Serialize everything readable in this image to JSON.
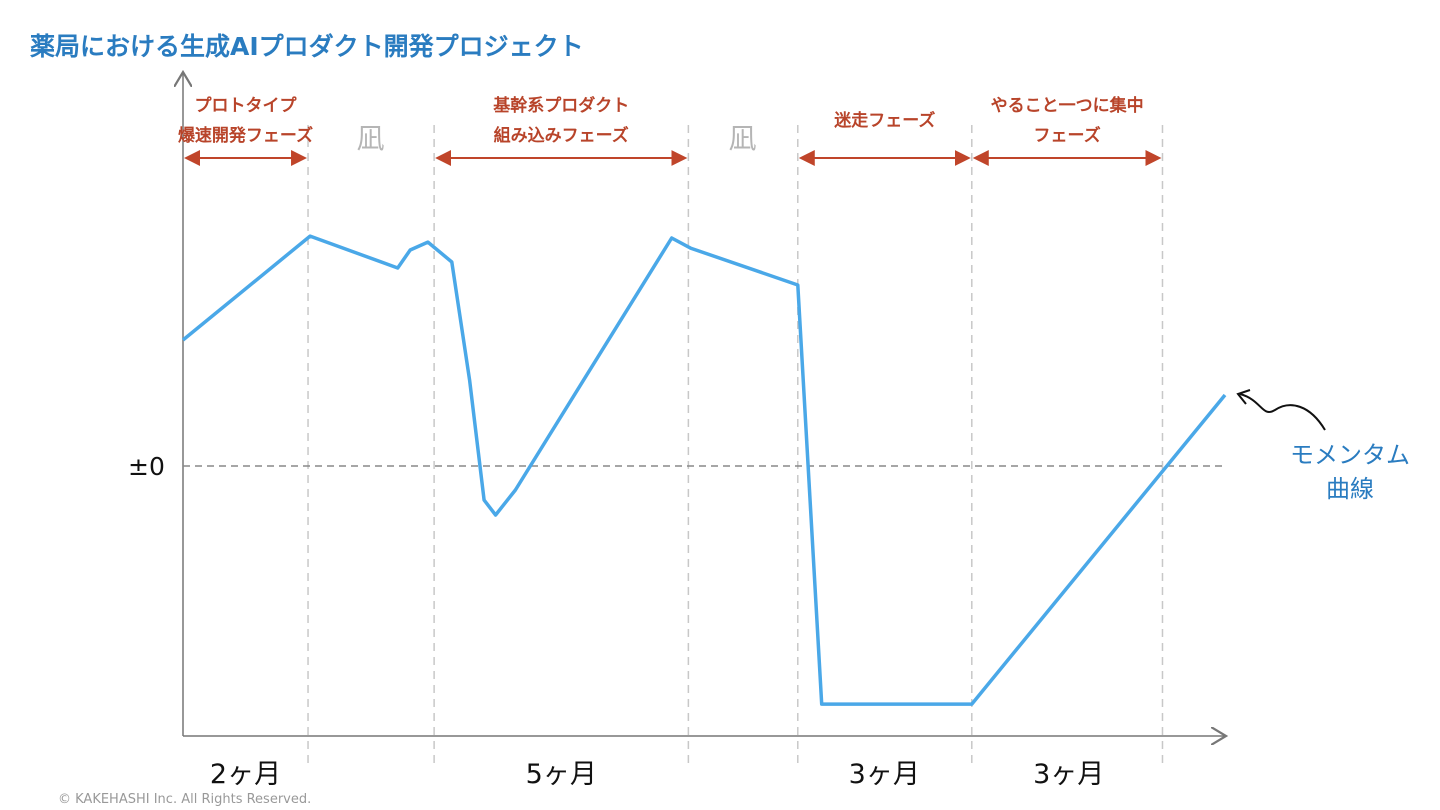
{
  "chart_data": {
    "type": "line",
    "title": "薬局における生成AIプロダクト開発プロジェクト",
    "xlabel": "",
    "ylabel": "",
    "xlim": [
      0,
      100
    ],
    "ylim": [
      -110,
      120
    ],
    "zero_label": "±0",
    "series": [
      {
        "name": "モメンタム曲線",
        "color": "#4aa8e8",
        "points": [
          [
            0,
            52.5
          ],
          [
            12.2,
            95.8
          ],
          [
            20.6,
            82.5
          ],
          [
            21.8,
            90
          ],
          [
            23.5,
            93.3
          ],
          [
            25.8,
            85
          ],
          [
            27.5,
            35.8
          ],
          [
            28.9,
            -14.2
          ],
          [
            30,
            -20.4
          ],
          [
            31.9,
            -10
          ],
          [
            46.9,
            95
          ],
          [
            48.7,
            90.8
          ],
          [
            59,
            75.4
          ],
          [
            61.3,
            -99.2
          ],
          [
            75.7,
            -99.2
          ],
          [
            100,
            29.6
          ]
        ]
      }
    ],
    "dividers": [
      12,
      24.1,
      48.5,
      59,
      75.7,
      94
    ],
    "phases": [
      {
        "lines": [
          "プロトタイプ",
          "爆速開発フェーズ"
        ],
        "from": 0,
        "to": 12
      },
      {
        "lines": [
          "基幹系プロダクト",
          "組み込みフェーズ"
        ],
        "from": 24.1,
        "to": 48.5
      },
      {
        "lines": [
          "迷走フェーズ"
        ],
        "from": 59,
        "to": 75.7
      },
      {
        "lines": [
          "やること一つに集中",
          "フェーズ"
        ],
        "from": 75.7,
        "to": 94
      }
    ],
    "calm_periods": [
      {
        "label": "凪",
        "at": 18
      },
      {
        "label": "凪",
        "at": 53.7
      }
    ],
    "durations": [
      {
        "label": "2ヶ月",
        "at": 6
      },
      {
        "label": "5ヶ月",
        "at": 36.3
      },
      {
        "label": "3ヶ月",
        "at": 67.3
      },
      {
        "label": "3ヶ月",
        "at": 85
      }
    ],
    "annotation": [
      "モメンタム",
      "曲線"
    ]
  },
  "footer": {
    "copyright": "© KAKEHASHI Inc. All Rights Reserved."
  }
}
